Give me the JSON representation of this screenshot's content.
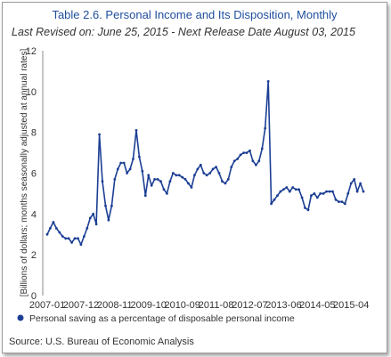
{
  "chart_data": {
    "type": "line",
    "title": "Table 2.6. Personal Income and Its Disposition, Monthly",
    "subtitle": "Last Revised on: June 25, 2015 - Next Release Date August 03, 2015",
    "ylabel": "[Billions of dollars; months seasonally adjusted at annual rates]",
    "ylim": [
      0,
      12
    ],
    "yticks": [
      "0",
      "2",
      "4",
      "6",
      "8",
      "10",
      "12"
    ],
    "xticks": [
      "2007-01",
      "2007-12",
      "2008-11",
      "2009-10",
      "2010-09",
      "2011-08",
      "2012-07",
      "2013-06",
      "2014-05",
      "2015-04"
    ],
    "source": "Source: U.S. Bureau of Economic Analysis",
    "legend_position": "bottom",
    "grid": "none",
    "line_color": "#1c3f94",
    "start": "2007-01",
    "series": [
      {
        "name": "Personal saving as a percentage of disposable personal income",
        "values": [
          3.0,
          3.3,
          3.6,
          3.3,
          3.1,
          2.9,
          2.8,
          2.8,
          2.6,
          2.8,
          2.8,
          2.5,
          2.9,
          3.3,
          3.8,
          4.0,
          3.5,
          7.9,
          5.6,
          4.4,
          3.7,
          4.4,
          5.7,
          6.2,
          6.5,
          6.5,
          6.0,
          6.2,
          6.7,
          8.1,
          6.8,
          6.1,
          4.9,
          5.9,
          5.4,
          5.7,
          5.7,
          5.6,
          5.2,
          5.0,
          5.6,
          6.0,
          5.9,
          5.9,
          5.8,
          5.7,
          5.5,
          5.3,
          5.9,
          6.2,
          6.4,
          6.0,
          5.9,
          6.0,
          6.2,
          6.3,
          6.0,
          5.6,
          5.5,
          5.7,
          6.3,
          6.6,
          6.7,
          6.9,
          7.0,
          7.0,
          7.1,
          6.6,
          6.4,
          6.6,
          7.2,
          8.2,
          10.5,
          4.5,
          4.7,
          4.9,
          5.1,
          5.2,
          5.3,
          5.1,
          5.3,
          5.2,
          5.2,
          4.8,
          4.3,
          4.2,
          4.9,
          5.0,
          4.8,
          5.0,
          5.0,
          5.1,
          5.1,
          5.1,
          4.7,
          4.6,
          4.6,
          4.5,
          5.0,
          5.5,
          5.7,
          5.1,
          5.5,
          5.1
        ]
      }
    ]
  }
}
